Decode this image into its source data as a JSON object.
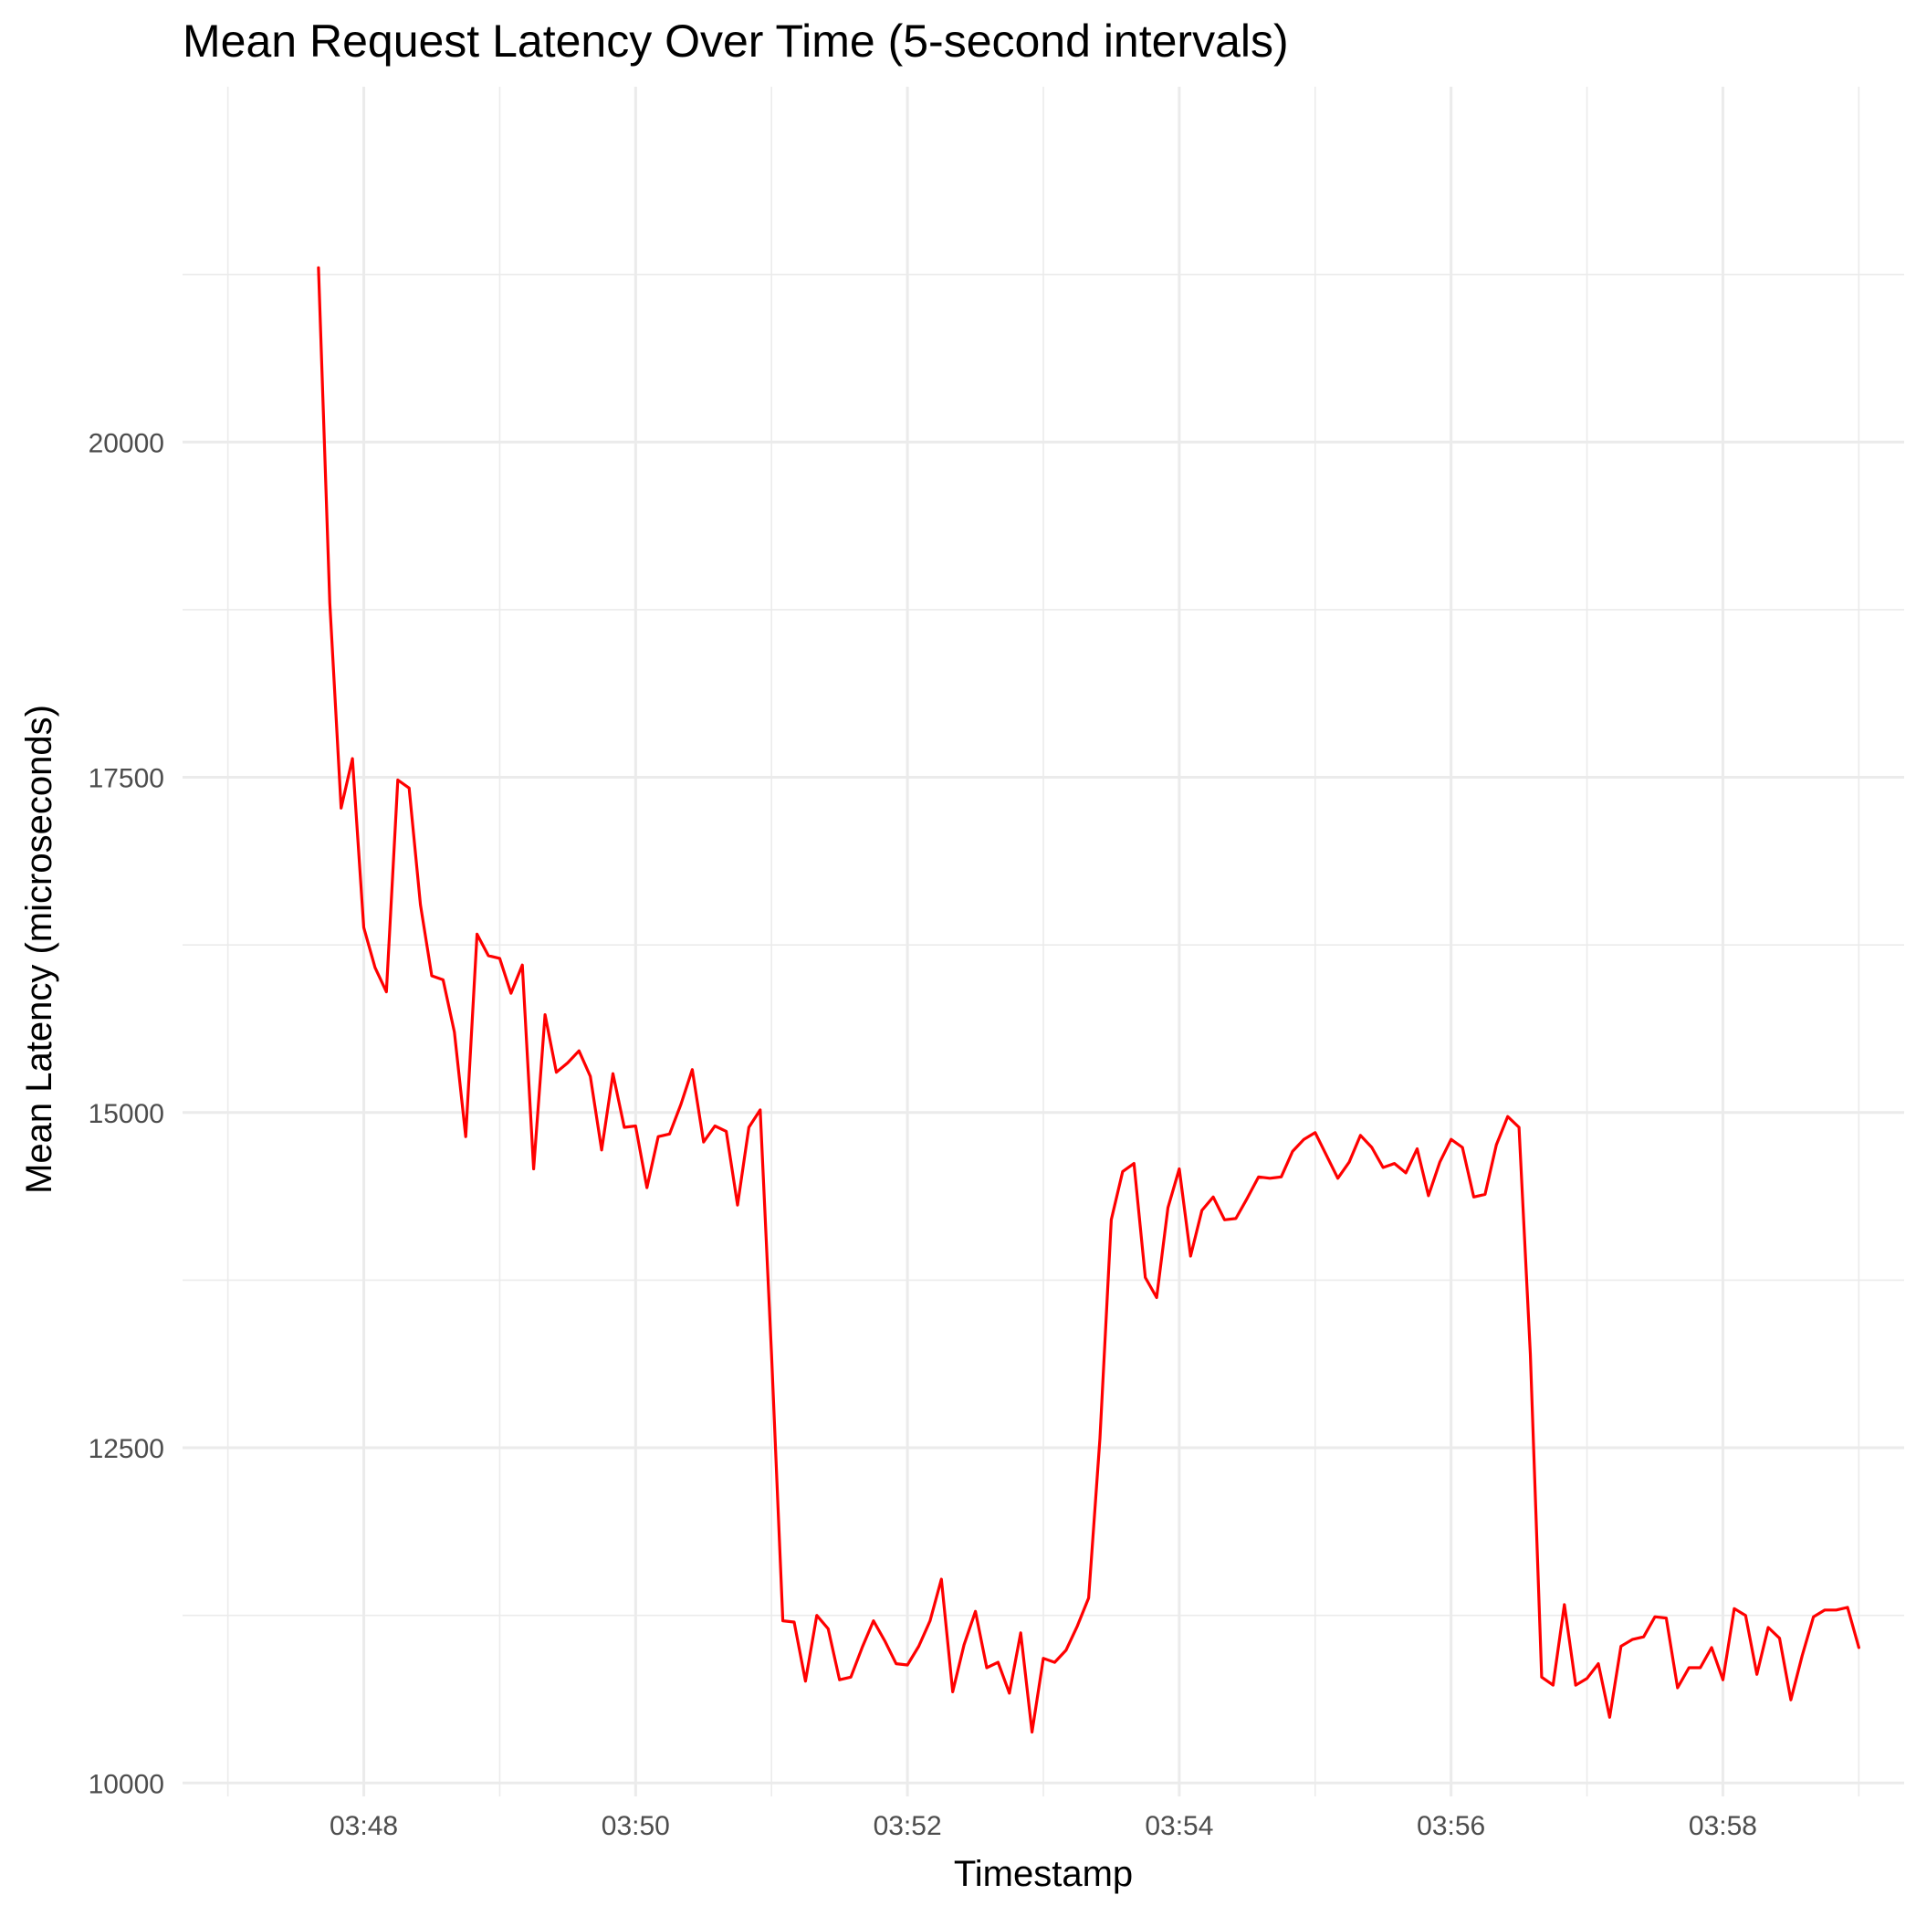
{
  "chart_data": {
    "type": "line",
    "title": "Mean Request Latency Over Time (5-second intervals)",
    "xlabel": "Timestamp",
    "ylabel": "Mean Latency (microseconds)",
    "x_start": "03:47:40",
    "x_interval_seconds": 5,
    "xlim": [
      "03:46:40",
      "03:59:20"
    ],
    "ylim": [
      9900,
      22650
    ],
    "x_ticks": [
      "03:48",
      "03:50",
      "03:52",
      "03:54",
      "03:56",
      "03:58"
    ],
    "y_ticks": [
      10000,
      12500,
      15000,
      17500,
      20000
    ],
    "grid": true,
    "legend": "none",
    "series": [
      {
        "color": "#ff0000",
        "values": [
          21300,
          18800,
          17270,
          17640,
          16380,
          16080,
          15900,
          17480,
          17420,
          16550,
          16020,
          15990,
          15600,
          14820,
          16330,
          16170,
          16150,
          15890,
          16100,
          14580,
          15730,
          15300,
          15370,
          15460,
          15270,
          14720,
          15290,
          14890,
          14900,
          14440,
          14820,
          14840,
          15060,
          15320,
          14780,
          14900,
          14860,
          14310,
          14890,
          15020,
          13200,
          11210,
          11200,
          10760,
          11250,
          11150,
          10770,
          10790,
          11010,
          11210,
          11060,
          10890,
          10880,
          11020,
          11210,
          11520,
          10680,
          11030,
          11280,
          10860,
          10900,
          10670,
          11120,
          10380,
          10930,
          10900,
          10990,
          11170,
          11380,
          12570,
          14200,
          14560,
          14620,
          13770,
          13620,
          14290,
          14580,
          13930,
          14270,
          14370,
          14200,
          14210,
          14360,
          14520,
          14510,
          14520,
          14710,
          14800,
          14850,
          14680,
          14510,
          14630,
          14830,
          14740,
          14590,
          14620,
          14550,
          14730,
          14380,
          14630,
          14800,
          14740,
          14370,
          14390,
          14760,
          14970,
          14890,
          13200,
          10790,
          10730,
          11330,
          10730,
          10780,
          10890,
          10490,
          11020,
          11070,
          11090,
          11240,
          11230,
          10710,
          10860,
          10860,
          11010,
          10770,
          11300,
          11250,
          10810,
          11160,
          11080,
          10620,
          10950,
          11240,
          11290,
          11290,
          11310,
          11010
        ]
      }
    ]
  }
}
